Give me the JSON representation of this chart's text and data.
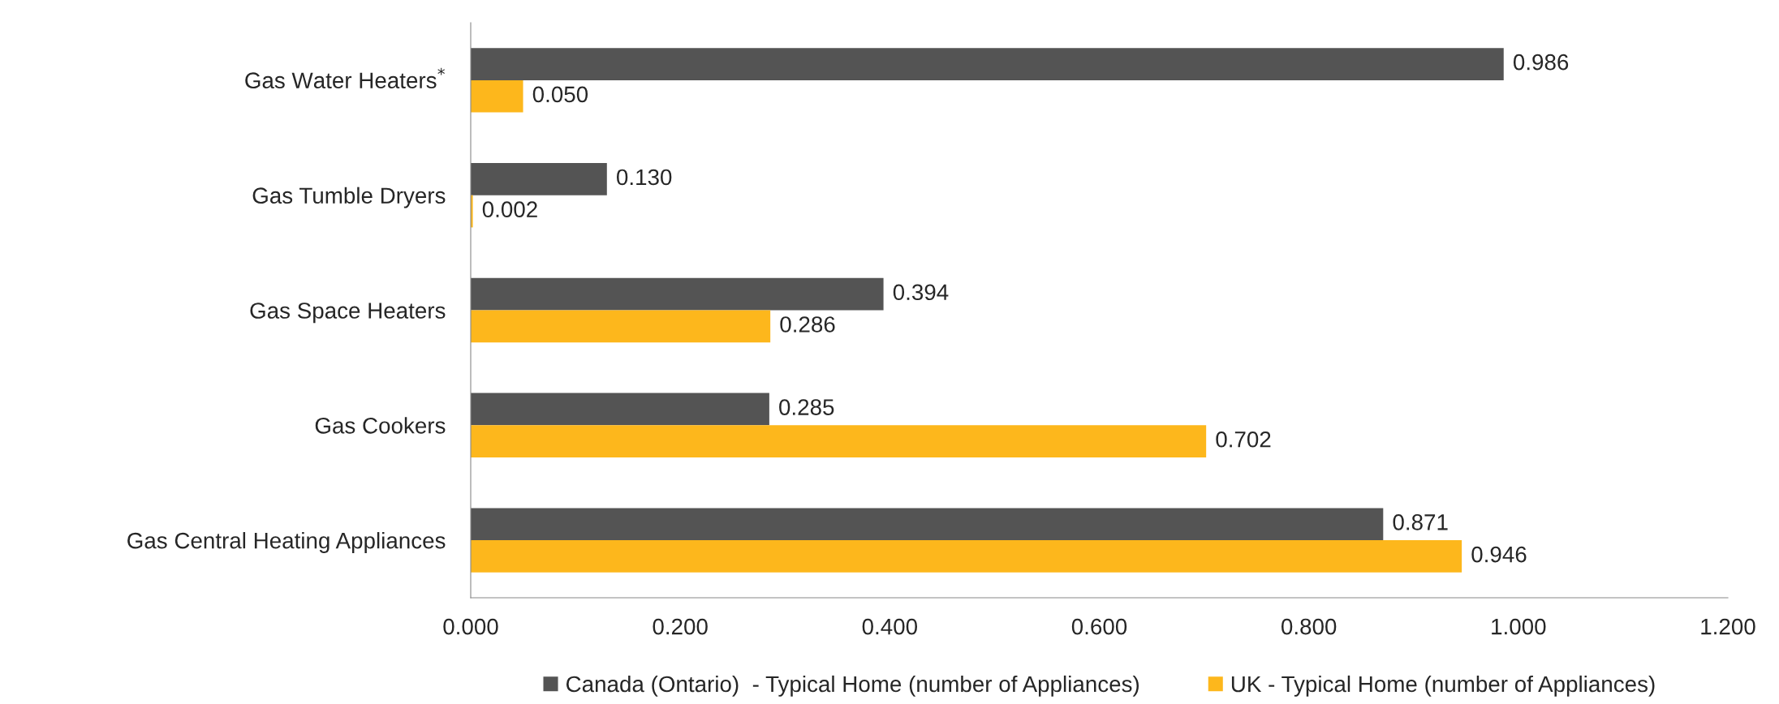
{
  "chart_data": {
    "type": "bar",
    "orientation": "horizontal",
    "categories": [
      "Gas Water Heaters$^{*}$",
      "Gas Tumble Dryers",
      "Gas Space Heaters",
      "Gas Cookers",
      "Gas Central Heating Appliances"
    ],
    "series": [
      {
        "name": "Canada (Ontario)  - Typical Home (number of Appliances)",
        "color": "#545454",
        "values": [
          0.986,
          0.13,
          0.394,
          0.285,
          0.871
        ],
        "value_labels": [
          "0.986",
          "0.130",
          "0.394",
          "0.285",
          "0.871"
        ]
      },
      {
        "name": "UK - Typical Home (number of Appliances)",
        "color": "#fdb71c",
        "values": [
          0.05,
          0.002,
          0.286,
          0.702,
          0.946
        ],
        "value_labels": [
          "0.050",
          "0.002",
          "0.286",
          "0.702",
          "0.946"
        ]
      }
    ],
    "xlim": [
      0,
      1.2
    ],
    "xticks": [
      {
        "value": 0,
        "label": "0.000"
      },
      {
        "value": 0.2,
        "label": "0.200"
      },
      {
        "value": 0.4,
        "label": "0.400"
      },
      {
        "value": 0.6,
        "label": "0.600"
      },
      {
        "value": 0.8,
        "label": "0.800"
      },
      {
        "value": 1.0,
        "label": "1.000"
      },
      {
        "value": 1.2,
        "label": "1.200"
      }
    ],
    "grid": false,
    "legend": "bottom"
  }
}
